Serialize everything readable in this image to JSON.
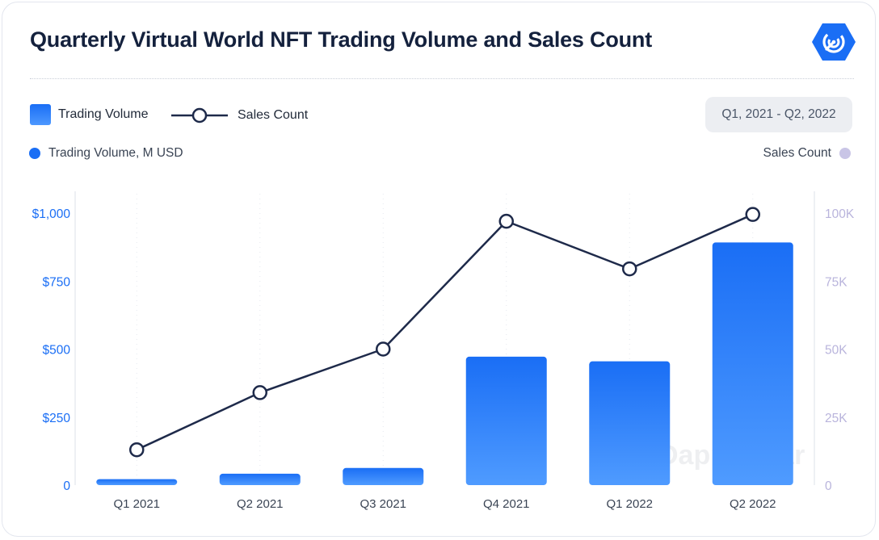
{
  "title": "Quarterly Virtual World NFT Trading Volume and Sales Count",
  "logo_icon": "dappradar-logo-icon",
  "legend": {
    "trading_volume": "Trading Volume",
    "sales_count": "Sales Count"
  },
  "date_range": "Q1, 2021 - Q2, 2022",
  "left_axis_title": "Trading Volume, M USD",
  "right_axis_title": "Sales Count",
  "watermark": "DappRadar",
  "colors": {
    "bar": "#1a6ef5",
    "line": "#1e2a4a",
    "left_axis": "#1a6ef5",
    "right_axis": "#b9b4dc"
  },
  "chart_data": {
    "type": "bar",
    "title": "Quarterly Virtual World NFT Trading Volume and Sales Count",
    "categories": [
      "Q1 2021",
      "Q2 2021",
      "Q3 2021",
      "Q4 2021",
      "Q1 2022",
      "Q2 2022"
    ],
    "series": [
      {
        "name": "Trading Volume",
        "type": "bar",
        "axis": "left",
        "values": [
          22,
          42,
          63,
          472,
          455,
          892
        ]
      },
      {
        "name": "Sales Count",
        "type": "line",
        "axis": "right",
        "values": [
          13000,
          34000,
          50000,
          97000,
          79500,
          99500
        ]
      }
    ],
    "y_left": {
      "label": "Trading Volume, M USD",
      "ylim": [
        0,
        1000
      ],
      "ticks": [
        0,
        250,
        500,
        750,
        1000
      ],
      "tick_labels": [
        "0",
        "$250",
        "$500",
        "$750",
        "$1,000"
      ]
    },
    "y_right": {
      "label": "Sales Count",
      "ylim": [
        0,
        100000
      ],
      "ticks": [
        0,
        25000,
        50000,
        75000,
        100000
      ],
      "tick_labels": [
        "0",
        "25K",
        "50K",
        "75K",
        "100K"
      ]
    },
    "grid": true,
    "legend_position": "top-left"
  }
}
